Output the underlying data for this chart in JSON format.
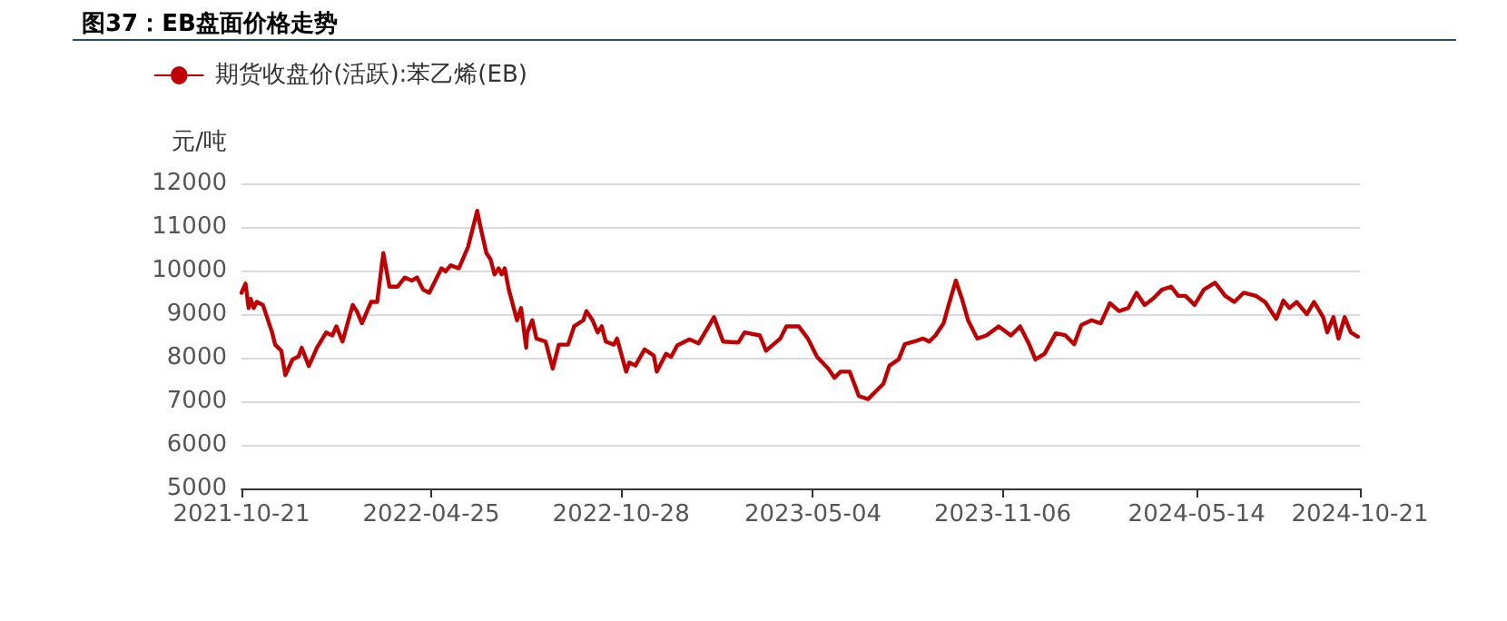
{
  "chart_data": {
    "type": "line",
    "title": "图37：EB盘面价格走势",
    "ylabel": "元/吨",
    "xlim": [
      "2021-10-21",
      "2024-10-21"
    ],
    "xticks": [
      "2021-10-21",
      "2022-04-25",
      "2022-10-28",
      "2023-05-04",
      "2023-11-06",
      "2024-05-14",
      "2024-10-21"
    ],
    "ylim": [
      5000,
      12000
    ],
    "yticks": [
      5000,
      6000,
      7000,
      8000,
      9000,
      10000,
      11000,
      12000
    ],
    "grid": "y",
    "legend": "top left",
    "line_style": "solid",
    "series": [
      {
        "name": "期货收盘价(活跃):苯乙烯(EB)",
        "color": "#c00000",
        "x": [
          "2021-10-21",
          "2021-10-25",
          "2021-10-28",
          "2021-10-30",
          "2021-11-02",
          "2021-11-05",
          "2021-11-11",
          "2021-11-20",
          "2021-11-23",
          "2021-11-29",
          "2021-12-03",
          "2021-12-10",
          "2021-12-16",
          "2021-12-19",
          "2021-12-26",
          "2022-01-03",
          "2022-01-12",
          "2022-01-18",
          "2022-01-22",
          "2022-01-28",
          "2022-02-07",
          "2022-02-11",
          "2022-02-16",
          "2022-02-25",
          "2022-03-03",
          "2022-03-09",
          "2022-03-15",
          "2022-03-23",
          "2022-03-30",
          "2022-04-06",
          "2022-04-11",
          "2022-04-17",
          "2022-04-23",
          "2022-04-29",
          "2022-05-05",
          "2022-05-09",
          "2022-05-14",
          "2022-05-22",
          "2022-05-31",
          "2022-06-09",
          "2022-06-12",
          "2022-06-18",
          "2022-06-22",
          "2022-06-26",
          "2022-06-30",
          "2022-07-03",
          "2022-07-06",
          "2022-07-10",
          "2022-07-18",
          "2022-07-22",
          "2022-07-27",
          "2022-07-28",
          "2022-08-02",
          "2022-08-06",
          "2022-08-15",
          "2022-08-22",
          "2022-08-28",
          "2022-09-06",
          "2022-09-12",
          "2022-09-21",
          "2022-09-24",
          "2022-09-30",
          "2022-10-05",
          "2022-10-09",
          "2022-10-13",
          "2022-10-21",
          "2022-10-24",
          "2022-11-02",
          "2022-11-05",
          "2022-11-11",
          "2022-11-20",
          "2022-11-29",
          "2022-12-02",
          "2022-12-11",
          "2022-12-16",
          "2022-12-22",
          "2023-01-03",
          "2023-01-12",
          "2023-01-20",
          "2023-01-27",
          "2023-02-05",
          "2023-02-20",
          "2023-02-26",
          "2023-03-13",
          "2023-03-19",
          "2023-04-02",
          "2023-04-08",
          "2023-04-20",
          "2023-04-29",
          "2023-05-08",
          "2023-05-19",
          "2023-05-25",
          "2023-05-31",
          "2023-06-09",
          "2023-06-18",
          "2023-06-27",
          "2023-07-06",
          "2023-07-12",
          "2023-07-18",
          "2023-07-27",
          "2023-08-02",
          "2023-08-11",
          "2023-08-20",
          "2023-08-26",
          "2023-09-01",
          "2023-09-09",
          "2023-09-14",
          "2023-09-21",
          "2023-09-27",
          "2023-10-03",
          "2023-10-12",
          "2023-10-21",
          "2023-11-02",
          "2023-11-14",
          "2023-11-23",
          "2023-12-02",
          "2023-12-08",
          "2023-12-17",
          "2023-12-28",
          "2024-01-06",
          "2024-01-15",
          "2024-01-22",
          "2024-02-01",
          "2024-02-10",
          "2024-02-19",
          "2024-02-28",
          "2024-03-08",
          "2024-03-16",
          "2024-03-24",
          "2024-04-01",
          "2024-04-10",
          "2024-04-19",
          "2024-04-26",
          "2024-05-03",
          "2024-05-12",
          "2024-05-21",
          "2024-06-01",
          "2024-06-11",
          "2024-06-20",
          "2024-06-29",
          "2024-07-11",
          "2024-07-20",
          "2024-07-31",
          "2024-08-07",
          "2024-08-13",
          "2024-08-20",
          "2024-08-30",
          "2024-09-06",
          "2024-09-15",
          "2024-09-19",
          "2024-09-25",
          "2024-09-30",
          "2024-10-06",
          "2024-10-12",
          "2024-10-19"
        ],
        "values": [
          9490,
          9700,
          9140,
          9350,
          9140,
          9280,
          9210,
          8580,
          8300,
          8160,
          7600,
          7960,
          8030,
          8230,
          7810,
          8230,
          8580,
          8510,
          8720,
          8370,
          9210,
          9070,
          8790,
          9280,
          9280,
          10400,
          9630,
          9630,
          9840,
          9770,
          9840,
          9560,
          9490,
          9770,
          10050,
          9980,
          10120,
          10050,
          10540,
          11370,
          11020,
          10400,
          10260,
          9910,
          10050,
          9910,
          10050,
          9560,
          8860,
          9140,
          8230,
          8580,
          8860,
          8440,
          8370,
          7750,
          8300,
          8300,
          8720,
          8860,
          9070,
          8860,
          8580,
          8720,
          8370,
          8300,
          8440,
          7680,
          7890,
          7820,
          8190,
          8050,
          7680,
          8090,
          8020,
          8280,
          8420,
          8330,
          8650,
          8930,
          8370,
          8350,
          8580,
          8510,
          8160,
          8440,
          8720,
          8720,
          8440,
          8020,
          7750,
          7540,
          7680,
          7680,
          7120,
          7050,
          7260,
          7400,
          7820,
          7960,
          8310,
          8370,
          8440,
          8370,
          8510,
          8790,
          9210,
          9770,
          9350,
          8860,
          8440,
          8510,
          8720,
          8510,
          8720,
          8300,
          7960,
          8090,
          8560,
          8520,
          8310,
          8750,
          8860,
          8790,
          9250,
          9070,
          9140,
          9490,
          9210,
          9350,
          9560,
          9630,
          9420,
          9420,
          9210,
          9560,
          9720,
          9420,
          9280,
          9490,
          9420,
          9280,
          8890,
          9310,
          9140,
          9280,
          9000,
          9280,
          8930,
          8580,
          8930,
          8440,
          8930,
          8580,
          8480
        ]
      }
    ]
  }
}
